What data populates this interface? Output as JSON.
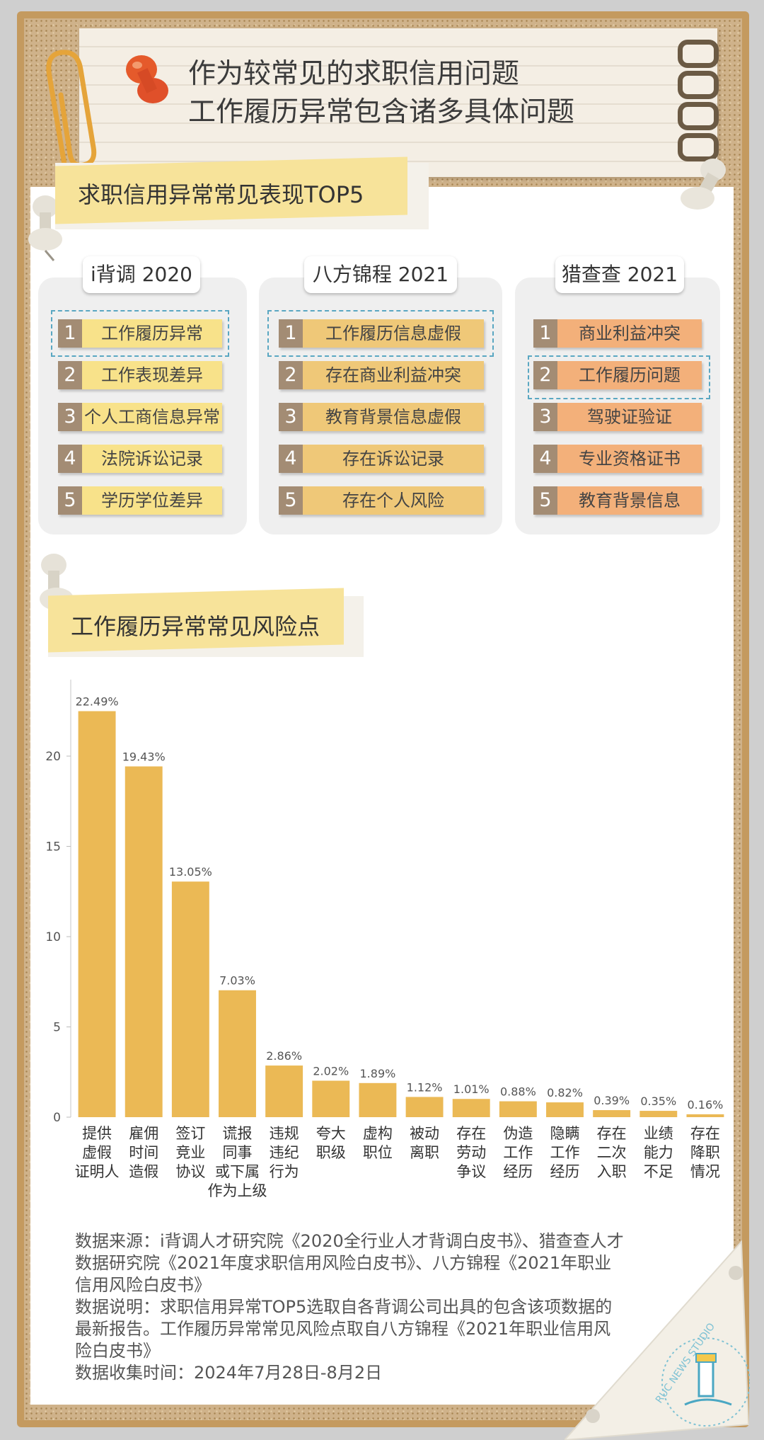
{
  "header": {
    "title_line1": "作为较常见的求职信用问题",
    "title_line2": "工作履历异常包含诸多具体问题"
  },
  "section1": {
    "title": "求职信用异常常见表现TOP5",
    "sources": [
      {
        "name": "i背调 2020",
        "items": [
          "工作履历异常",
          "工作表现差异",
          "个人工商信息异常",
          "法院诉讼记录",
          "学历学位差异"
        ]
      },
      {
        "name": "八方锦程 2021",
        "items": [
          "工作履历信息虚假",
          "存在商业利益冲突",
          "教育背景信息虚假",
          "存在诉讼记录",
          "存在个人风险"
        ]
      },
      {
        "name": "猎查查 2021",
        "items": [
          "商业利益冲突",
          "工作履历问题",
          "驾驶证验证",
          "专业资格证书",
          "教育背景信息"
        ]
      }
    ],
    "colors": {
      "col1": "#f8e28a",
      "col2": "#efc878",
      "col3": "#f3b07a",
      "num_bg": "#a38c74",
      "highlight": "#5aa7c2"
    }
  },
  "section2": {
    "title": "工作履历异常常见风险点"
  },
  "chart_data": {
    "type": "bar",
    "categories": [
      [
        "提供",
        "虚假",
        "证明人"
      ],
      [
        "雇佣",
        "时间",
        "造假"
      ],
      [
        "签订",
        "竞业",
        "协议"
      ],
      [
        "谎报",
        "同事",
        "或下属",
        "作为上级"
      ],
      [
        "违规",
        "违纪",
        "行为"
      ],
      [
        "夸大",
        "职级"
      ],
      [
        "虚构",
        "职位"
      ],
      [
        "被动",
        "离职"
      ],
      [
        "存在",
        "劳动",
        "争议"
      ],
      [
        "伪造",
        "工作",
        "经历"
      ],
      [
        "隐瞒",
        "工作",
        "经历"
      ],
      [
        "存在",
        "二次",
        "入职"
      ],
      [
        "业绩",
        "能力",
        "不足"
      ],
      [
        "存在",
        "降职",
        "情况"
      ]
    ],
    "values": [
      22.49,
      19.43,
      13.05,
      7.03,
      2.86,
      2.02,
      1.89,
      1.12,
      1.01,
      0.88,
      0.82,
      0.39,
      0.35,
      0.16
    ],
    "value_labels": [
      "22.49%",
      "19.43%",
      "13.05%",
      "7.03%",
      "2.86%",
      "2.02%",
      "1.89%",
      "1.12%",
      "1.01%",
      "0.88%",
      "0.82%",
      "0.39%",
      "0.35%",
      "0.16%"
    ],
    "yticks": [
      0,
      5,
      10,
      15,
      20
    ],
    "ylim": [
      0,
      24
    ],
    "bar_color": "#ebb955"
  },
  "notes": [
    "数据来源：i背调人才研究院《2020全行业人才背调白皮书》、猎查查人才数据研究院《2021年度求职信用风险白皮书》、八方锦程《2021年职业信用风险白皮书》",
    "数据说明：求职信用异常TOP5选取自各背调公司出具的包含该项数据的最新报告。工作履历异常常见风险点取自八方锦程《2021年职业信用风险白皮书》",
    "数据收集时间：2024年7月28日-8月2日"
  ],
  "logo": {
    "text": "RUC NEWS STUDIO"
  }
}
